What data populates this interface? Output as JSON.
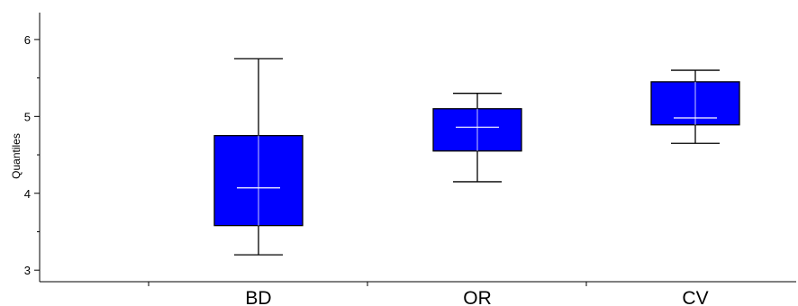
{
  "chart_data": {
    "type": "box",
    "ylabel": "Quantiles",
    "ylim": [
      2.85,
      6.35
    ],
    "yticks": [
      3,
      4,
      5,
      6
    ],
    "ytick_labels": [
      "3",
      "4",
      "5",
      "6"
    ],
    "minor_y_step": 0.5,
    "categories": [
      "BD",
      "OR",
      "CV"
    ],
    "boxes": [
      {
        "category": "BD",
        "min": 3.2,
        "q1": 3.58,
        "median": 4.07,
        "q3": 4.75,
        "max": 5.75
      },
      {
        "category": "OR",
        "min": 4.15,
        "q1": 4.55,
        "median": 4.86,
        "q3": 5.1,
        "max": 5.3
      },
      {
        "category": "CV",
        "min": 4.65,
        "q1": 4.89,
        "median": 4.98,
        "q3": 5.45,
        "max": 5.6
      }
    ],
    "box_fill": "#0000ff",
    "box_stroke": "#000000",
    "median_color": "#ffffff",
    "grid": false,
    "legend": "none"
  }
}
